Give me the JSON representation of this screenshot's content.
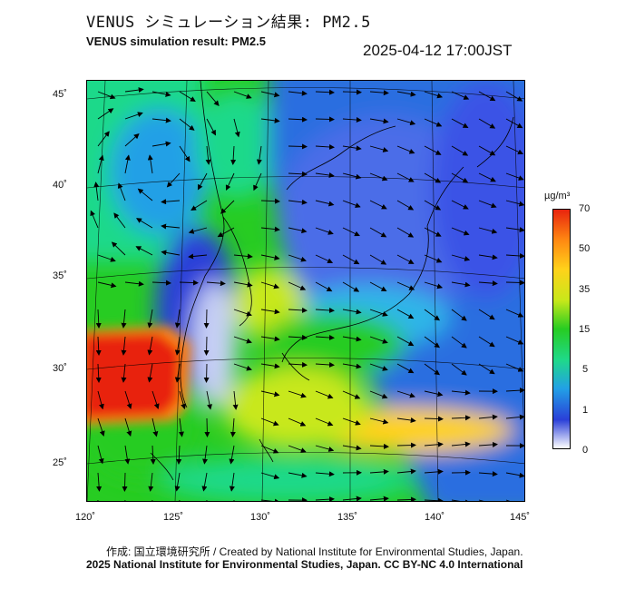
{
  "header": {
    "title_jp": "VENUS シミュレーション結果: PM2.5",
    "title_en": "VENUS simulation result: PM2.5",
    "timestamp": "2025-04-12 17:00JST"
  },
  "map": {
    "lon_labels": [
      "120˚",
      "125˚",
      "130˚",
      "135˚",
      "140˚",
      "145˚"
    ],
    "lat_labels": [
      "45˚",
      "40˚",
      "35˚",
      "30˚",
      "25˚"
    ],
    "field": "PM2.5 concentration with wind vectors"
  },
  "colorbar": {
    "unit": "µg/m³",
    "tick_labels": [
      "70",
      "50",
      "35",
      "15",
      "5",
      "1",
      "0"
    ],
    "colors": [
      "#ffffff",
      "#2a3fd8",
      "#22a0e6",
      "#1fd98a",
      "#27cc22",
      "#c8e81a",
      "#ffd21a",
      "#ff8a12",
      "#e8240e"
    ]
  },
  "footer": {
    "credit_line1": "作成: 国立環境研究所 / Created by National Institute for Environmental Studies, Japan.",
    "credit_line2": "2025 National Institute for Environmental Studies, Japan. CC BY-NC 4.0 International"
  }
}
